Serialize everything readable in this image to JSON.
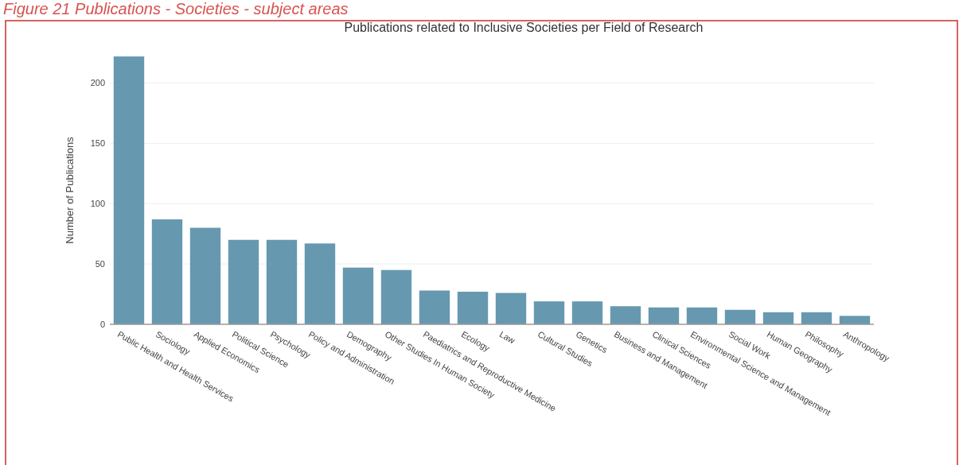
{
  "chart_data": {
    "type": "bar",
    "title": "Publications related to Inclusive Societies per Field of Research",
    "ylabel": "Number of Publications",
    "annotations": [
      "Figure 21 Publications - Societies - subject areas"
    ],
    "categories": [
      "Public Health and Health Services",
      "Sociology",
      "Applied Economics",
      "Political Science",
      "Psychology",
      "Policy and Administration",
      "Demography",
      "Other Studies In Human Society",
      "Paediatrics and Reproductive Medicine",
      "Ecology",
      "Law",
      "Cultural Studies",
      "Genetics",
      "Business and Management",
      "Clinical Sciences",
      "Environmental Science and Management",
      "Social Work",
      "Human Geography",
      "Philosophy",
      "Anthropology"
    ],
    "values": [
      222,
      87,
      80,
      70,
      70,
      67,
      47,
      45,
      28,
      27,
      26,
      19,
      19,
      15,
      14,
      14,
      12,
      10,
      10,
      7
    ],
    "color": "#6699b0",
    "ylim": [
      0,
      222
    ],
    "yticks": [
      0,
      50,
      100,
      150,
      200
    ],
    "grid": "y"
  }
}
